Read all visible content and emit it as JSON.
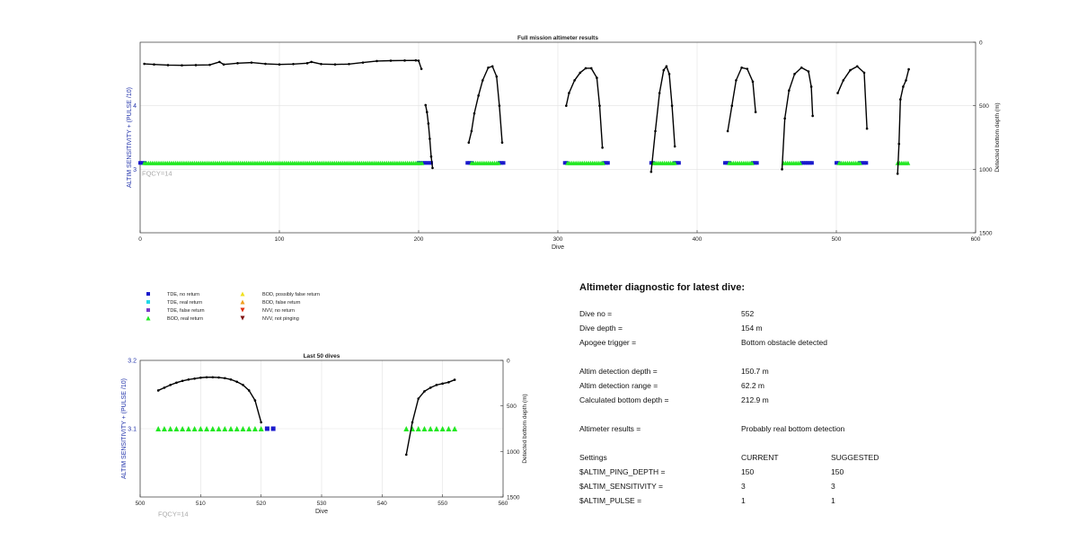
{
  "chart_data": [
    {
      "type": "scatter",
      "title": "Full mission altimeter results",
      "xlabel": "Dive",
      "ylabel_left": "ALTIM SENSITIVITY + (PULSE /10)",
      "ylabel_right": "Detected bottom depth (m)",
      "xlim": [
        0,
        600
      ],
      "ylim_left": [
        2,
        5
      ],
      "yticks_left": [
        3,
        4
      ],
      "ylim_right": [
        0,
        1500
      ],
      "right_axis_inverted": true,
      "xticks": [
        0,
        100,
        200,
        300,
        400,
        500,
        600
      ],
      "yticks_right": [
        0,
        500,
        1000,
        1500
      ],
      "grid": true,
      "annotation": "FQCY=14",
      "bottom_depth_segments": [
        {
          "x": [
            3,
            10,
            20,
            30,
            40,
            50,
            57,
            60,
            70,
            80,
            90,
            100,
            110,
            120,
            123,
            130,
            140,
            150,
            160,
            170,
            180,
            190,
            198,
            200,
            202
          ],
          "y": [
            170,
            175,
            180,
            182,
            180,
            178,
            155,
            175,
            165,
            160,
            170,
            175,
            172,
            165,
            155,
            172,
            175,
            172,
            160,
            148,
            145,
            144,
            143,
            145,
            210
          ]
        },
        {
          "x": [
            205,
            206,
            207,
            208,
            209,
            210
          ],
          "y": [
            495,
            550,
            640,
            760,
            900,
            990
          ]
        },
        {
          "x": [
            236,
            238,
            240,
            243,
            246,
            250,
            253,
            256,
            258,
            260
          ],
          "y": [
            790,
            700,
            560,
            420,
            300,
            200,
            190,
            270,
            500,
            790
          ]
        },
        {
          "x": [
            306,
            308,
            312,
            316,
            320,
            324,
            328,
            330,
            332
          ],
          "y": [
            500,
            400,
            300,
            240,
            205,
            205,
            280,
            500,
            830
          ]
        },
        {
          "x": [
            367,
            370,
            373,
            376,
            378,
            380,
            382,
            384
          ],
          "y": [
            1020,
            700,
            400,
            220,
            190,
            250,
            500,
            820
          ]
        },
        {
          "x": [
            422,
            425,
            428,
            432,
            436,
            440,
            442
          ],
          "y": [
            700,
            500,
            300,
            200,
            210,
            310,
            550
          ]
        },
        {
          "x": [
            461,
            463,
            466,
            470,
            475,
            480,
            482,
            483
          ],
          "y": [
            1000,
            600,
            380,
            250,
            200,
            230,
            350,
            580
          ]
        },
        {
          "x": [
            501,
            505,
            510,
            515,
            520,
            522
          ],
          "y": [
            400,
            300,
            220,
            190,
            240,
            680
          ]
        },
        {
          "x": [
            544,
            545,
            546,
            548,
            550,
            552
          ],
          "y": [
            1035,
            800,
            450,
            350,
            300,
            212.9
          ]
        }
      ],
      "series": [
        {
          "name": "TDE, no return",
          "color": "#1a1acc",
          "marker": "square",
          "y": 3.1,
          "x_ranges": [
            [
              0,
              3
            ],
            [
              200,
              210
            ],
            [
              235,
              238
            ],
            [
              258,
              262
            ],
            [
              305,
              307
            ],
            [
              333,
              337
            ],
            [
              367,
              369
            ],
            [
              384,
              388
            ],
            [
              420,
              423
            ],
            [
              440,
              444
            ],
            [
              475,
              483
            ],
            [
              500,
              502
            ],
            [
              517,
              522
            ]
          ]
        },
        {
          "name": "BOD, real return",
          "color": "#22e822",
          "marker": "triangle-up",
          "y": 3.1,
          "x_ranges": [
            [
              3,
              203
            ],
            [
              238,
              258
            ],
            [
              307,
              333
            ],
            [
              369,
              384
            ],
            [
              423,
              440
            ],
            [
              462,
              475
            ],
            [
              502,
              517
            ],
            [
              544,
              552
            ]
          ]
        }
      ]
    },
    {
      "type": "scatter",
      "title": "Last 50 dives",
      "xlabel": "Dive",
      "ylabel_left": "ALTIM SENSITIVITY + (PULSE /10)",
      "ylabel_right": "Detected bottom depth (m)",
      "xlim": [
        500,
        560
      ],
      "xticks": [
        500,
        510,
        520,
        530,
        540,
        550,
        560
      ],
      "ylim_left": [
        3.0,
        3.2
      ],
      "yticks_left": [
        3.1,
        3.2
      ],
      "ylim_right": [
        0,
        1500
      ],
      "right_axis_inverted": true,
      "yticks_right": [
        0,
        500,
        1000,
        1500
      ],
      "grid": true,
      "annotation": "FQCY=14",
      "bottom_depth_segments": [
        {
          "x": [
            503,
            504,
            505,
            506,
            507,
            508,
            509,
            510,
            511,
            512,
            513,
            514,
            515,
            516,
            517,
            518,
            519,
            520
          ],
          "y": [
            330,
            300,
            270,
            245,
            225,
            210,
            200,
            190,
            185,
            185,
            188,
            195,
            210,
            235,
            270,
            330,
            440,
            680
          ]
        },
        {
          "x": [
            544,
            545,
            546,
            547,
            548,
            549,
            550,
            551,
            552
          ],
          "y": [
            1035,
            680,
            420,
            340,
            300,
            270,
            255,
            240,
            212.9
          ]
        }
      ],
      "series": [
        {
          "name": "BOD, real return",
          "color": "#22e822",
          "marker": "triangle-up",
          "y": 3.1,
          "x": [
            503,
            504,
            505,
            506,
            507,
            508,
            509,
            510,
            511,
            512,
            513,
            514,
            515,
            516,
            517,
            518,
            519,
            520,
            544,
            545,
            546,
            547,
            548,
            549,
            550,
            551,
            552
          ]
        },
        {
          "name": "TDE, no return",
          "color": "#1a1acc",
          "marker": "square",
          "y": 3.1,
          "x": [
            521,
            522
          ]
        }
      ]
    }
  ],
  "legend": {
    "col1": [
      {
        "label": "TDE, no return",
        "marker": "square",
        "color": "#1a1acc"
      },
      {
        "label": "TDE, real return",
        "marker": "square",
        "color": "#22d8e8"
      },
      {
        "label": "TDE, false return",
        "marker": "square",
        "color": "#7a38c8"
      },
      {
        "label": "BOD, real return",
        "marker": "triangle-up",
        "color": "#22e822"
      }
    ],
    "col2": [
      {
        "label": "BOD, possibly false return",
        "marker": "triangle-up",
        "color": "#f0e020"
      },
      {
        "label": "BOD, false return",
        "marker": "triangle-up",
        "color": "#f0a020"
      },
      {
        "label": "NVV, no return",
        "marker": "triangle-down",
        "color": "#e03010"
      },
      {
        "label": "NVV, not pinging",
        "marker": "triangle-down",
        "color": "#801010"
      }
    ]
  },
  "diagnostic": {
    "title": "Altimeter diagnostic for latest dive:",
    "dive_no_label": "Dive no =",
    "dive_no": "552",
    "dive_depth_label": "Dive depth =",
    "dive_depth": "154 m",
    "apogee_label": "Apogee trigger =",
    "apogee": "Bottom obstacle detected",
    "det_depth_label": "Altim detection depth =",
    "det_depth": "150.7 m",
    "det_range_label": "Altim detection range =",
    "det_range": "62.2 m",
    "calc_bottom_label": "Calculated bottom depth =",
    "calc_bottom": "212.9 m",
    "results_label": "Altimeter results =",
    "results": "Probably real bottom detection",
    "settings_label": "Settings",
    "current_label": "CURRENT",
    "suggested_label": "SUGGESTED",
    "ping_depth_label": "$ALTIM_PING_DEPTH =",
    "ping_depth_current": "150",
    "ping_depth_suggested": "150",
    "sensitivity_label": "$ALTIM_SENSITIVITY =",
    "sensitivity_current": "3",
    "sensitivity_suggested": "3",
    "pulse_label": "$ALTIM_PULSE =",
    "pulse_current": "1",
    "pulse_suggested": "1"
  }
}
